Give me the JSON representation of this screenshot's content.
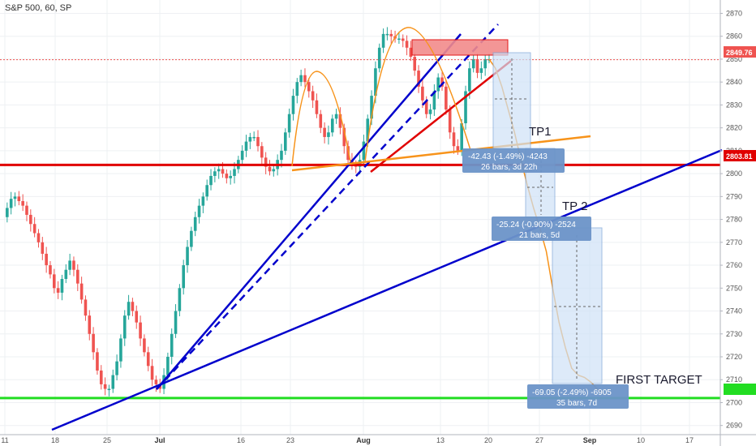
{
  "header": {
    "title": "S&P 500, 60, SP"
  },
  "chart_data": {
    "type": "line",
    "title": "S&P 500, 60, SP",
    "xlabel": "",
    "ylabel": "",
    "ylim": [
      2686,
      2873
    ],
    "y_ticks": [
      2690,
      2700,
      2710,
      2720,
      2730,
      2740,
      2750,
      2760,
      2770,
      2780,
      2790,
      2800,
      2810,
      2820,
      2830,
      2840,
      2850,
      2860,
      2870
    ],
    "x_ticks": [
      "11",
      "18",
      "25",
      "Jul",
      "16",
      "23",
      "Aug",
      "13",
      "20",
      "27",
      "Sep",
      "10",
      "17"
    ],
    "grid": true,
    "series": [
      {
        "type": "price-path",
        "values": [
          2781,
          2785,
          2789,
          2790,
          2788,
          2786,
          2782,
          2778,
          2774,
          2770,
          2765,
          2760,
          2756,
          2750,
          2748,
          2754,
          2758,
          2762,
          2758,
          2752,
          2745,
          2738,
          2730,
          2722,
          2714,
          2708,
          2706,
          2706,
          2712,
          2718,
          2728,
          2738,
          2744,
          2740,
          2735,
          2728,
          2722,
          2716,
          2710,
          2708,
          2706,
          2712,
          2720,
          2730,
          2740,
          2750,
          2760,
          2768,
          2775,
          2781,
          2786,
          2790,
          2795,
          2799,
          2801,
          2802,
          2800,
          2798,
          2799,
          2802,
          2806,
          2810,
          2814,
          2816,
          2816,
          2812,
          2807,
          2803,
          2801,
          2802,
          2806,
          2810,
          2818,
          2826,
          2834,
          2840,
          2843,
          2840,
          2836,
          2832,
          2826,
          2820,
          2816,
          2818,
          2824,
          2826,
          2820,
          2812,
          2806,
          2804,
          2803,
          2806,
          2814,
          2824,
          2834,
          2846,
          2855,
          2861,
          2861,
          2860,
          2859,
          2859,
          2858,
          2855,
          2851,
          2845,
          2838,
          2832,
          2826,
          2828,
          2836,
          2842,
          2838,
          2828,
          2818,
          2812,
          2810,
          2822,
          2836,
          2846,
          2850,
          2844,
          2846,
          2850,
          2850
        ]
      }
    ],
    "levels": [
      {
        "label": "2849.76",
        "value": 2849.76,
        "color": "#ef5350"
      },
      {
        "label": "2803.81",
        "value": 2803.81,
        "color": "#e00000"
      },
      {
        "label": "FIRST TARGET",
        "value": 2702,
        "color": "#22dd22"
      }
    ],
    "annotations": {
      "tp1": "TP1",
      "tp2": "TP 2",
      "first_target": "FIRST TARGET",
      "measure1": {
        "line1": "-42.43 (-1.49%) -4243",
        "line2": "26 bars, 3d 22h"
      },
      "measure2": {
        "line1": "-25.24 (-0.90%) -2524",
        "line2": "21 bars, 5d"
      },
      "measure3": {
        "line1": "-69.05 (-2.49%) -6905",
        "line2": "35 bars, 7d"
      }
    },
    "projection": {
      "values": [
        2850,
        2846,
        2838,
        2828,
        2818,
        2806,
        2795,
        2785,
        2776,
        2766,
        2750,
        2735,
        2724,
        2715,
        2712,
        2711,
        2709,
        2706,
        2704
      ]
    },
    "colors": {
      "up": "#26a69a",
      "down": "#ef5350",
      "trend_blue": "#0000cc",
      "trend_red": "#e00000",
      "orange": "#f7931a",
      "support_red": "#e00000",
      "target_green": "#22dd22",
      "measure_box": "#6b94c8"
    }
  }
}
